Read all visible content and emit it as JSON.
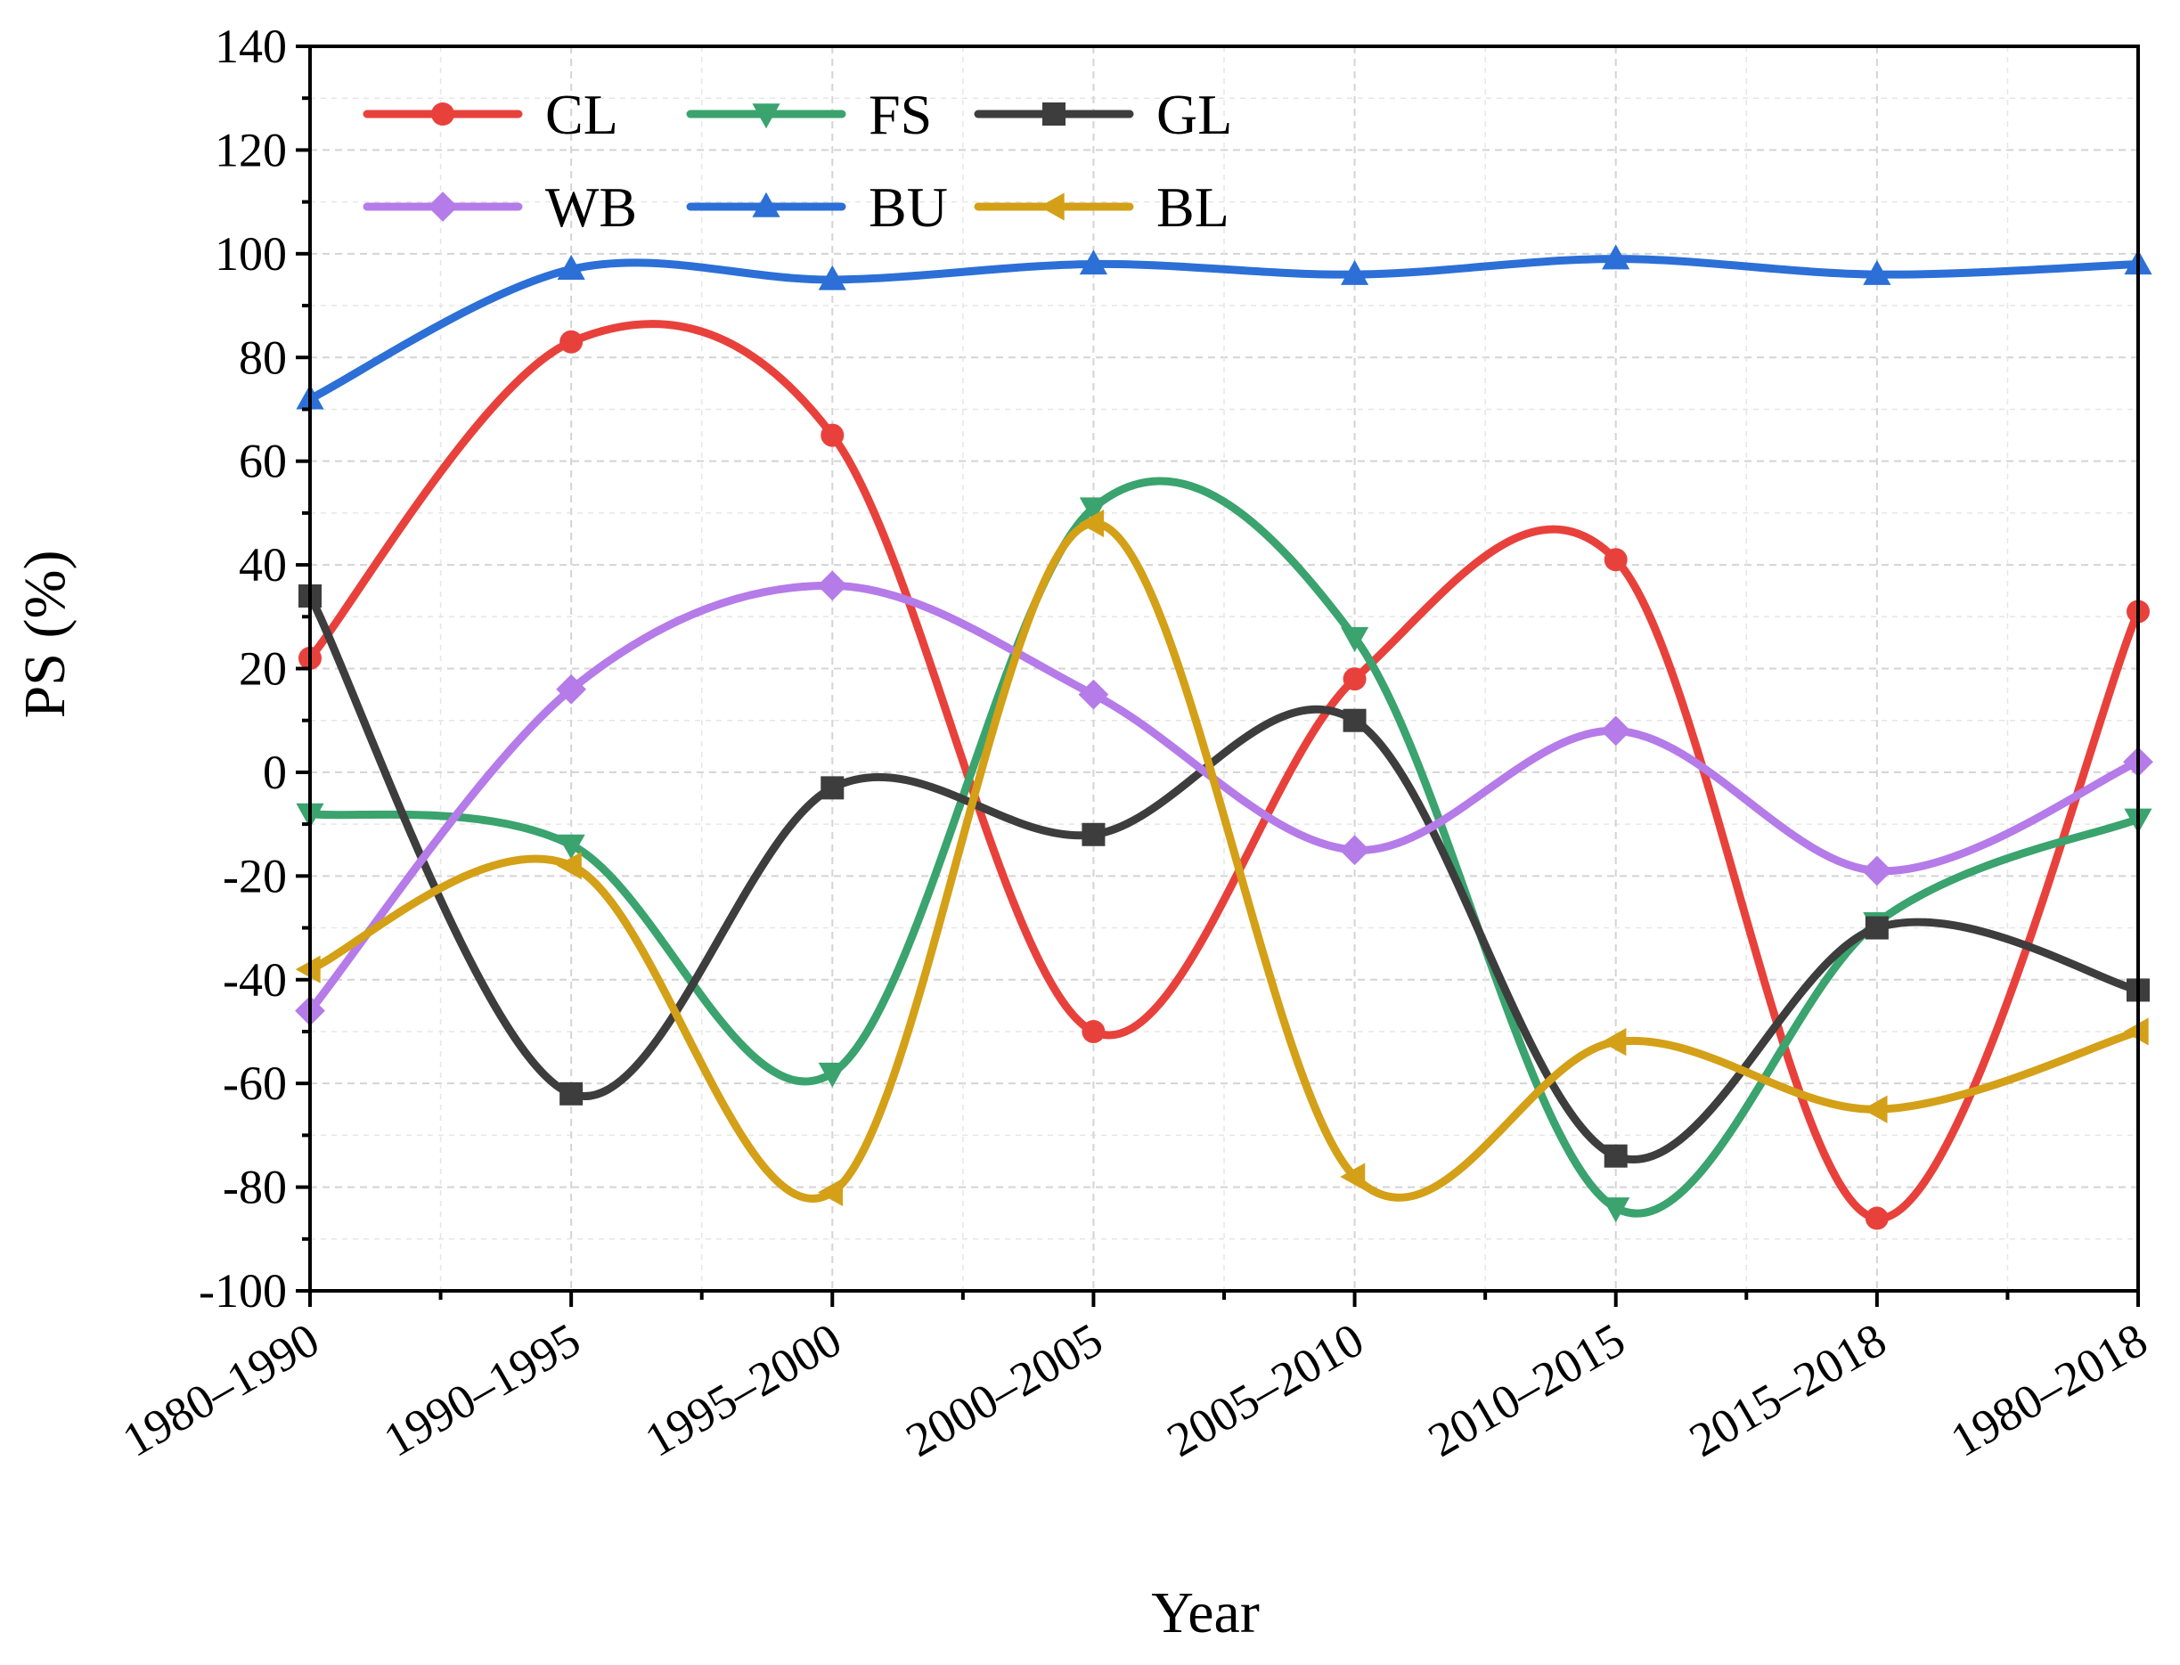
{
  "chart_data": {
    "type": "line",
    "title": "",
    "xlabel": "Year",
    "ylabel": "PS (%)",
    "ylim": [
      -100,
      140
    ],
    "yticks": [
      -100,
      -80,
      -60,
      -40,
      -20,
      0,
      20,
      40,
      60,
      80,
      100,
      120,
      140
    ],
    "grid": true,
    "smooth": true,
    "legend_position": "top-left",
    "categories": [
      "1980–1990",
      "1990–1995",
      "1995–2000",
      "2000–2005",
      "2005–2010",
      "2010–2015",
      "2015–2018",
      "1980–2018"
    ],
    "series": [
      {
        "name": "CL",
        "color": "#e8413c",
        "marker": "circle",
        "values": [
          22,
          83,
          65,
          -50,
          18,
          41,
          -86,
          31
        ]
      },
      {
        "name": "FS",
        "color": "#3aa36e",
        "marker": "triangle-down",
        "values": [
          -8,
          -14,
          -58,
          51,
          26,
          -84,
          -29,
          -9
        ]
      },
      {
        "name": "GL",
        "color": "#3d3d3d",
        "marker": "square",
        "values": [
          34,
          -62,
          -3,
          -12,
          10,
          -74,
          -30,
          -42
        ]
      },
      {
        "name": "WB",
        "color": "#b57be8",
        "marker": "diamond",
        "values": [
          -46,
          16,
          36,
          15,
          -15,
          8,
          -19,
          2
        ]
      },
      {
        "name": "BU",
        "color": "#2c6fd6",
        "marker": "triangle-up",
        "values": [
          72,
          97,
          95,
          98,
          96,
          99,
          96,
          98
        ]
      },
      {
        "name": "BL",
        "color": "#d3a017",
        "marker": "triangle-left",
        "values": [
          -38,
          -18,
          -81,
          48,
          -78,
          -52,
          -65,
          -50
        ]
      }
    ]
  }
}
